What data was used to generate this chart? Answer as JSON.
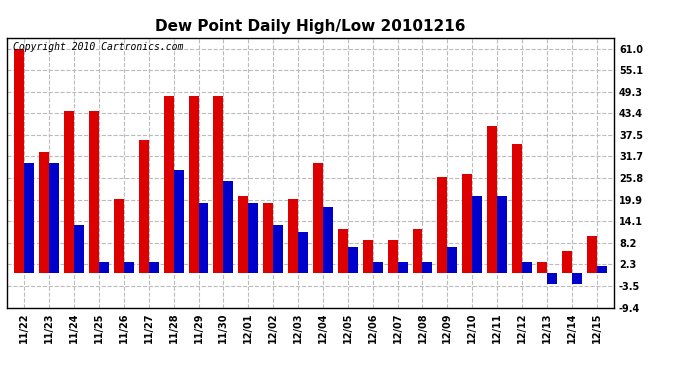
{
  "title": "Dew Point Daily High/Low 20101216",
  "copyright": "Copyright 2010 Cartronics.com",
  "categories": [
    "11/22",
    "11/23",
    "11/24",
    "11/25",
    "11/26",
    "11/27",
    "11/28",
    "11/29",
    "11/30",
    "12/01",
    "12/02",
    "12/03",
    "12/04",
    "12/05",
    "12/06",
    "12/07",
    "12/08",
    "12/09",
    "12/10",
    "12/11",
    "12/12",
    "12/13",
    "12/14",
    "12/15"
  ],
  "highs": [
    61.0,
    33.0,
    44.0,
    44.0,
    20.0,
    36.0,
    48.0,
    48.0,
    48.0,
    21.0,
    19.0,
    20.0,
    30.0,
    12.0,
    9.0,
    9.0,
    12.0,
    26.0,
    27.0,
    40.0,
    35.0,
    3.0,
    6.0,
    10.0
  ],
  "lows": [
    30.0,
    30.0,
    13.0,
    3.0,
    3.0,
    3.0,
    28.0,
    19.0,
    25.0,
    19.0,
    13.0,
    11.0,
    18.0,
    7.0,
    3.0,
    3.0,
    3.0,
    7.0,
    21.0,
    21.0,
    3.0,
    -3.0,
    -3.0,
    2.0
  ],
  "high_color": "#dd0000",
  "low_color": "#0000cc",
  "bg_color": "#ffffff",
  "plot_bg_color": "#ffffff",
  "yticks": [
    61.0,
    55.1,
    49.3,
    43.4,
    37.5,
    31.7,
    25.8,
    19.9,
    14.1,
    8.2,
    2.3,
    -3.5,
    -9.4
  ],
  "ymin": -9.4,
  "ymax": 64.0,
  "bar_width": 0.4,
  "grid_color": "#bbbbbb",
  "title_fontsize": 11,
  "tick_fontsize": 7,
  "copyright_fontsize": 7
}
